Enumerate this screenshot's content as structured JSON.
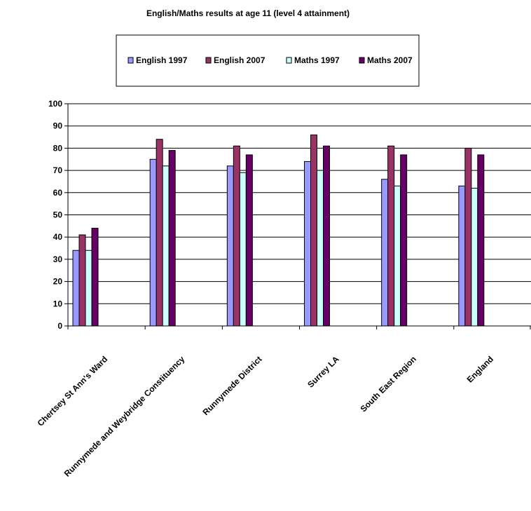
{
  "chart_data": {
    "type": "bar",
    "title": "English/Maths results at age 11 (level 4 attainment)",
    "categories": [
      "Chertsey St Ann's Ward",
      "Runnymede and Weybridge Constituency",
      "Runnymede District",
      "Surrey LA",
      "South East Region",
      "England"
    ],
    "series": [
      {
        "name": "English 1997",
        "color": "#9999ff",
        "values": [
          34,
          75,
          72,
          74,
          66,
          63
        ]
      },
      {
        "name": "English 2007",
        "color": "#993366",
        "values": [
          41,
          84,
          81,
          86,
          81,
          80
        ]
      },
      {
        "name": "Maths 1997",
        "color": "#ccffff",
        "values": [
          34,
          72,
          69,
          70,
          63,
          62
        ]
      },
      {
        "name": "Maths 2007",
        "color": "#660066",
        "values": [
          44,
          79,
          77,
          81,
          77,
          77
        ]
      }
    ],
    "ylim": [
      0,
      100
    ],
    "yticks": [
      0,
      10,
      20,
      30,
      40,
      50,
      60,
      70,
      80,
      90,
      100
    ],
    "grid": true,
    "legend": "top"
  }
}
